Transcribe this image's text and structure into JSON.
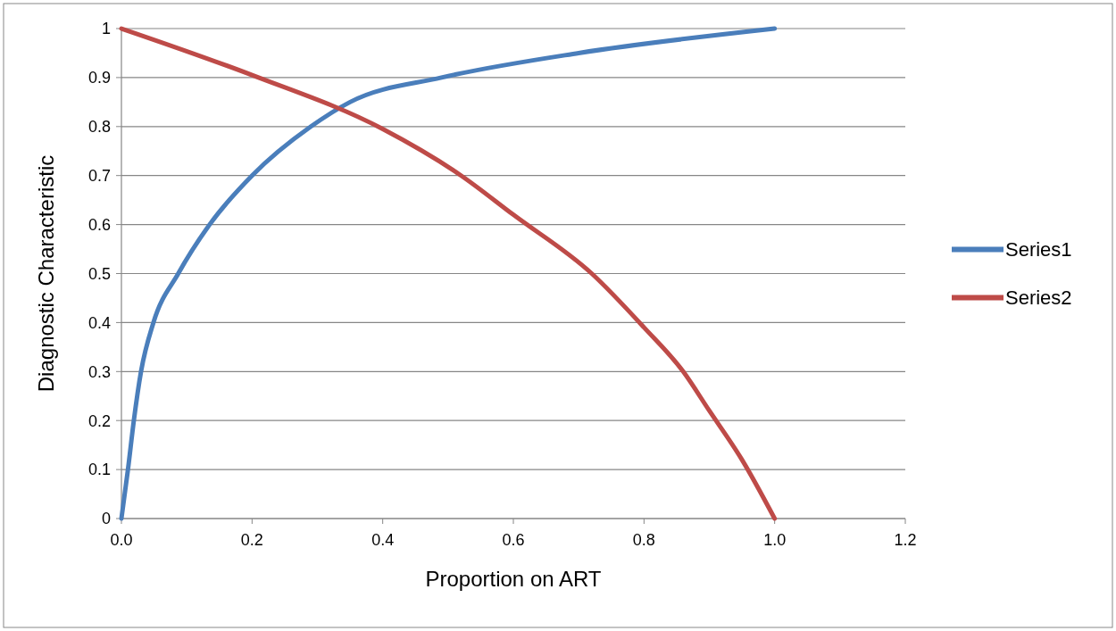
{
  "chart_data": {
    "type": "line",
    "xlabel": "Proportion on ART",
    "ylabel": "Diagnostic Characteristic",
    "xlim": [
      0,
      1.2
    ],
    "xticks": [
      {
        "value": 0,
        "label": "0.0"
      },
      {
        "value": 0.2,
        "label": "0.2"
      },
      {
        "value": 0.4,
        "label": "0.4"
      },
      {
        "value": 0.6,
        "label": "0.6"
      },
      {
        "value": 0.8,
        "label": "0.8"
      },
      {
        "value": 1,
        "label": "1.0"
      },
      {
        "value": 1.2,
        "label": "1.2"
      }
    ],
    "ylim": [
      0,
      1
    ],
    "yticks": [
      0,
      0.1,
      0.2,
      0.3,
      0.4,
      0.5,
      0.6,
      0.7,
      0.8,
      0.9,
      1
    ],
    "grid": "y",
    "legend": "right",
    "marker": "none",
    "line_style": "solid",
    "series": [
      {
        "name": "Series1",
        "color": "#4a7ebb",
        "x": [
          0,
          0.01,
          0.019,
          0.03,
          0.049,
          0.087,
          0.135,
          0.2,
          0.29,
          0.35,
          0.49,
          0.7,
          1
        ],
        "values": [
          0,
          0.1,
          0.2,
          0.3,
          0.4,
          0.5,
          0.6,
          0.7,
          0.8,
          0.85,
          0.9,
          0.95,
          1
        ]
      },
      {
        "name": "Series2",
        "color": "#be4b48",
        "x": [
          0,
          0.2,
          0.4,
          0.52,
          0.6,
          0.72,
          0.8,
          0.86,
          0.9,
          0.95,
          1
        ],
        "values": [
          1,
          0.905,
          0.795,
          0.7,
          0.62,
          0.5,
          0.39,
          0.3,
          0.22,
          0.12,
          0
        ]
      }
    ]
  }
}
